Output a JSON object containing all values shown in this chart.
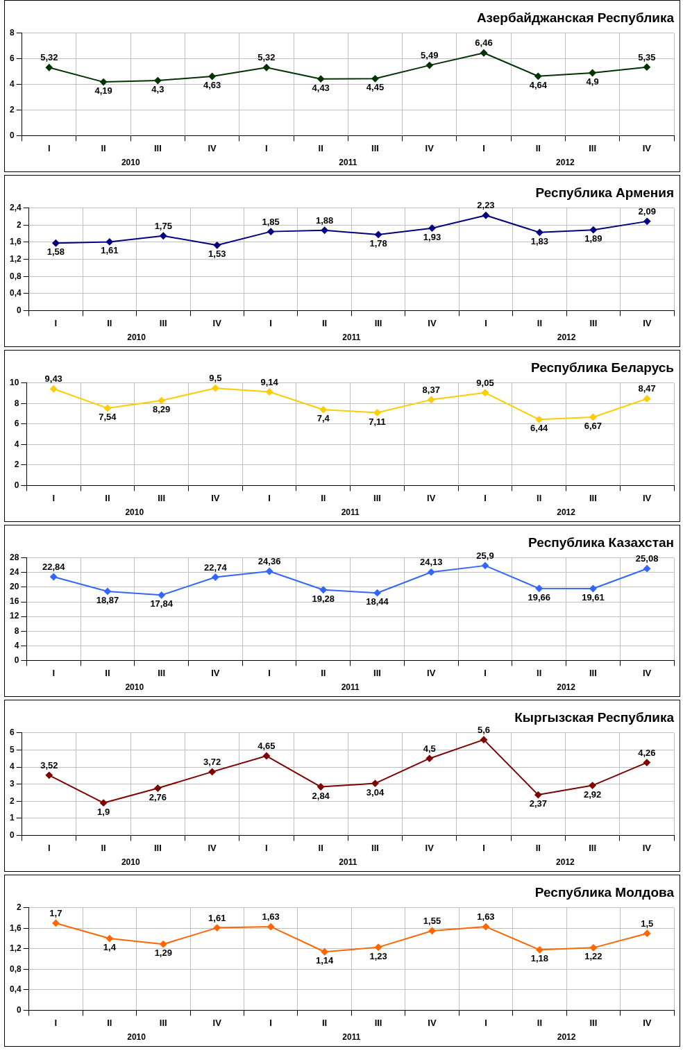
{
  "chart_data": [
    {
      "type": "line",
      "title": "Азербайджанская Республика",
      "categories": [
        "I",
        "II",
        "III",
        "IV",
        "I",
        "II",
        "III",
        "IV",
        "I",
        "II",
        "III",
        "IV"
      ],
      "annotations": [
        "2010",
        "2011",
        "2012"
      ],
      "series": [
        {
          "color": "#003300",
          "values": [
            5.32,
            4.19,
            4.3,
            4.63,
            5.32,
            4.43,
            4.45,
            5.49,
            6.46,
            4.64,
            4.9,
            5.35
          ],
          "value_labels": [
            "5,32",
            "4,19",
            "4,3",
            "4,63",
            "5,32",
            "4,43",
            "4,45",
            "5,49",
            "6,46",
            "4,64",
            "4,9",
            "5,35"
          ]
        }
      ],
      "ylim": [
        0,
        8
      ],
      "yticks": [
        0,
        2,
        4,
        6,
        8
      ],
      "grid": true,
      "legend": false,
      "marker": "diamond"
    },
    {
      "type": "line",
      "title": "Республика Армения",
      "categories": [
        "I",
        "II",
        "III",
        "IV",
        "I",
        "II",
        "III",
        "IV",
        "I",
        "II",
        "III",
        "IV"
      ],
      "annotations": [
        "2010",
        "2011",
        "2012"
      ],
      "series": [
        {
          "color": "#000080",
          "values": [
            1.58,
            1.61,
            1.75,
            1.53,
            1.85,
            1.88,
            1.78,
            1.93,
            2.23,
            1.83,
            1.89,
            2.09
          ],
          "value_labels": [
            "1,58",
            "1,61",
            "1,75",
            "1,53",
            "1,85",
            "1,88",
            "1,78",
            "1,93",
            "2,23",
            "1,83",
            "1,89",
            "2,09"
          ]
        }
      ],
      "ylim": [
        0,
        2.4
      ],
      "yticks": [
        0,
        {
          "value": 0.4,
          "label": "0,4"
        },
        {
          "value": 0.8,
          "label": "0,8"
        },
        {
          "value": 1.2,
          "label": "1,2"
        },
        {
          "value": 1.6,
          "label": "1,6"
        },
        2,
        {
          "value": 2.4,
          "label": "2,4"
        }
      ],
      "grid": true,
      "legend": false,
      "marker": "diamond"
    },
    {
      "type": "line",
      "title": "Республика Беларусь",
      "categories": [
        "I",
        "II",
        "III",
        "IV",
        "I",
        "II",
        "III",
        "IV",
        "I",
        "II",
        "III",
        "IV"
      ],
      "annotations": [
        "2010",
        "2011",
        "2012"
      ],
      "series": [
        {
          "color": "#ffcc00",
          "values": [
            9.43,
            7.54,
            8.29,
            9.5,
            9.14,
            7.4,
            7.11,
            8.37,
            9.05,
            6.44,
            6.67,
            8.47
          ],
          "value_labels": [
            "9,43",
            "7,54",
            "8,29",
            "9,5",
            "9,14",
            "7,4",
            "7,11",
            "8,37",
            "9,05",
            "6,44",
            "6,67",
            "8,47"
          ]
        }
      ],
      "ylim": [
        0,
        10
      ],
      "yticks": [
        0,
        2,
        4,
        6,
        8,
        10
      ],
      "grid": true,
      "legend": false,
      "marker": "diamond"
    },
    {
      "type": "line",
      "title": "Республика Казахстан",
      "categories": [
        "I",
        "II",
        "III",
        "IV",
        "I",
        "II",
        "III",
        "IV",
        "I",
        "II",
        "III",
        "IV"
      ],
      "annotations": [
        "2010",
        "2011",
        "2012"
      ],
      "series": [
        {
          "color": "#3366ff",
          "values": [
            22.84,
            18.87,
            17.84,
            22.74,
            24.36,
            19.28,
            18.44,
            24.13,
            25.9,
            19.66,
            19.61,
            25.08
          ],
          "value_labels": [
            "22,84",
            "18,87",
            "17,84",
            "22,74",
            "24,36",
            "19,28",
            "18,44",
            "24,13",
            "25,9",
            "19,66",
            "19,61",
            "25,08"
          ]
        }
      ],
      "ylim": [
        0,
        28
      ],
      "yticks": [
        0,
        4,
        8,
        12,
        16,
        20,
        24,
        28
      ],
      "grid": true,
      "legend": false,
      "marker": "diamond"
    },
    {
      "type": "line",
      "title": "Кыргызская Республика",
      "categories": [
        "I",
        "II",
        "III",
        "IV",
        "I",
        "II",
        "III",
        "IV",
        "I",
        "II",
        "III",
        "IV"
      ],
      "annotations": [
        "2010",
        "2011",
        "2012"
      ],
      "series": [
        {
          "color": "#800000",
          "values": [
            3.52,
            1.9,
            2.76,
            3.72,
            4.65,
            2.84,
            3.04,
            4.5,
            5.6,
            2.37,
            2.92,
            4.26
          ],
          "value_labels": [
            "3,52",
            "1,9",
            "2,76",
            "3,72",
            "4,65",
            "2,84",
            "3,04",
            "4,5",
            "5,6",
            "2,37",
            "2,92",
            "4,26"
          ]
        }
      ],
      "ylim": [
        0,
        6
      ],
      "yticks": [
        0,
        1,
        2,
        3,
        4,
        5,
        6
      ],
      "grid": true,
      "legend": false,
      "marker": "diamond"
    },
    {
      "type": "line",
      "title": "Республика Молдова",
      "categories": [
        "I",
        "II",
        "III",
        "IV",
        "I",
        "II",
        "III",
        "IV",
        "I",
        "II",
        "III",
        "IV"
      ],
      "annotations": [
        "2010",
        "2011",
        "2012"
      ],
      "series": [
        {
          "color": "#ff6600",
          "values": [
            1.7,
            1.4,
            1.29,
            1.61,
            1.63,
            1.14,
            1.23,
            1.55,
            1.63,
            1.18,
            1.22,
            1.5
          ],
          "value_labels": [
            "1,7",
            "1,4",
            "1,29",
            "1,61",
            "1,63",
            "1,14",
            "1,23",
            "1,55",
            "1,63",
            "1,18",
            "1,22",
            "1,5"
          ]
        }
      ],
      "ylim": [
        0,
        2
      ],
      "yticks": [
        0,
        {
          "value": 0.4,
          "label": "0,4"
        },
        {
          "value": 0.8,
          "label": "0,8"
        },
        {
          "value": 1.2,
          "label": "1,2"
        },
        {
          "value": 1.6,
          "label": "1,6"
        },
        2
      ],
      "grid": true,
      "legend": false,
      "marker": "diamond"
    }
  ]
}
